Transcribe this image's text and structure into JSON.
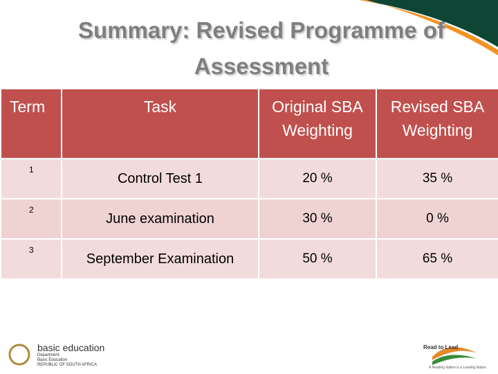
{
  "title": "Summary: Revised Programme of Assessment",
  "table": {
    "header": [
      "Term",
      "Task",
      "Original SBA Weighting",
      "Revised SBA Weighting"
    ],
    "rows": [
      [
        "1",
        "Control Test 1",
        "20 %",
        "35 %"
      ],
      [
        "2",
        "June examination",
        "30 %",
        "0 %"
      ],
      [
        "3",
        "September Examination",
        "50 %",
        "65 %"
      ]
    ]
  },
  "footer": {
    "left_logo": {
      "name": "basic education",
      "lines": [
        "Department:",
        "Basic Education",
        "REPUBLIC OF SOUTH AFRICA"
      ]
    },
    "right_logo": {
      "name": "Read to Lead",
      "slogan": "A Reading Nation is a Leading Nation"
    }
  }
}
